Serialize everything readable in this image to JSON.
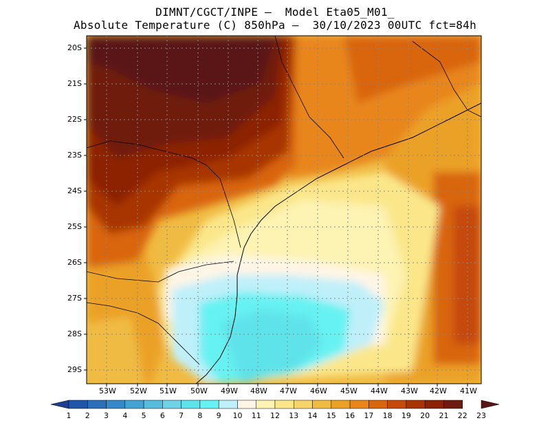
{
  "title": {
    "line1": "DIMNT/CGCT/INPE –  Model Eta05_M01_",
    "line2": "Absolute Temperature (C) 850hPa –  30/10/2023 00UTC fct=84h"
  },
  "lat_labels": [
    "20S",
    "21S",
    "22S",
    "23S",
    "24S",
    "25S",
    "26S",
    "27S",
    "28S",
    "29S"
  ],
  "lon_labels": [
    "53W",
    "52W",
    "51W",
    "50W",
    "49W",
    "48W",
    "47W",
    "46W",
    "45W",
    "44W",
    "43W",
    "42W",
    "41W"
  ],
  "colorbar": {
    "labels": [
      "1",
      "2",
      "3",
      "4",
      "5",
      "6",
      "7",
      "8",
      "9",
      "10",
      "11",
      "12",
      "13",
      "14",
      "15",
      "16",
      "17",
      "18",
      "19",
      "20",
      "21",
      "22",
      "23"
    ],
    "colors": [
      "#1f3f94",
      "#2155a8",
      "#2a6fba",
      "#3589c8",
      "#44a3d4",
      "#58bcdd",
      "#6fd2e6",
      "#5fe3ea",
      "#66f2f2",
      "#bff0fa",
      "#fff5e6",
      "#fdf3b2",
      "#fbe78a",
      "#f7d46a",
      "#f0bb42",
      "#eba126",
      "#e8861a",
      "#d9650c",
      "#c54a09",
      "#a83406",
      "#8c2205",
      "#6f1a10",
      "#5a1316"
    ]
  }
}
